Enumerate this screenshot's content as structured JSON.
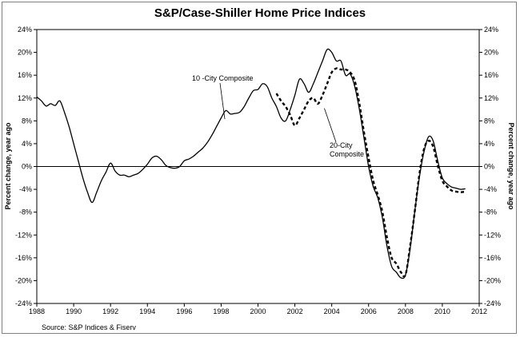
{
  "chart_data": {
    "type": "line",
    "title": "S&P/Case-Shiller Home Price Indices",
    "source": "Source: S&P Indices & Fiserv",
    "ylabel_left": "Percent change, year ago",
    "ylabel_right": "Percent change, year ago",
    "xlabel": "",
    "xlim": [
      1988,
      2012
    ],
    "ylim": [
      -24,
      24
    ],
    "x_ticks": [
      "1988",
      "1990",
      "1992",
      "1994",
      "1996",
      "1998",
      "2000",
      "2002",
      "2004",
      "2006",
      "2008",
      "2010",
      "2012"
    ],
    "y_ticks": [
      "24%",
      "20%",
      "16%",
      "12%",
      "8%",
      "4%",
      "0%",
      "-4%",
      "-8%",
      "-12%",
      "-16%",
      "-20%",
      "-24%"
    ],
    "grid": false,
    "zero_line": true,
    "series": [
      {
        "name": "10 -City Composite",
        "style": "solid",
        "color": "#000000",
        "x": [
          1988.0,
          1988.25,
          1988.5,
          1988.75,
          1989.0,
          1989.25,
          1989.5,
          1989.75,
          1990.0,
          1990.25,
          1990.5,
          1990.75,
          1991.0,
          1991.25,
          1991.5,
          1991.75,
          1992.0,
          1992.25,
          1992.5,
          1992.75,
          1993.0,
          1993.25,
          1993.5,
          1993.75,
          1994.0,
          1994.25,
          1994.5,
          1994.75,
          1995.0,
          1995.25,
          1995.5,
          1995.75,
          1996.0,
          1996.25,
          1996.5,
          1996.75,
          1997.0,
          1997.25,
          1997.5,
          1997.75,
          1998.0,
          1998.25,
          1998.5,
          1998.75,
          1999.0,
          1999.25,
          1999.5,
          1999.75,
          2000.0,
          2000.25,
          2000.5,
          2000.75,
          2001.0,
          2001.25,
          2001.5,
          2001.75,
          2002.0,
          2002.25,
          2002.5,
          2002.75,
          2003.0,
          2003.25,
          2003.5,
          2003.75,
          2004.0,
          2004.25,
          2004.5,
          2004.75,
          2005.0,
          2005.25,
          2005.5,
          2005.75,
          2006.0,
          2006.25,
          2006.5,
          2006.75,
          2007.0,
          2007.25,
          2007.5,
          2007.75,
          2008.0,
          2008.25,
          2008.5,
          2008.75,
          2009.0,
          2009.25,
          2009.5,
          2009.75,
          2010.0,
          2010.25,
          2010.5,
          2010.75,
          2011.0,
          2011.25
        ],
        "values": [
          12.2,
          11.5,
          10.6,
          11.0,
          10.7,
          11.5,
          9.5,
          7.0,
          4.0,
          1.0,
          -2.0,
          -4.5,
          -6.3,
          -4.5,
          -2.5,
          -1.0,
          0.6,
          -0.8,
          -1.5,
          -1.5,
          -1.8,
          -1.5,
          -1.2,
          -0.5,
          0.4,
          1.5,
          1.8,
          1.2,
          0.2,
          -0.2,
          -0.3,
          0.0,
          1.0,
          1.3,
          1.8,
          2.5,
          3.2,
          4.2,
          5.5,
          7.0,
          8.5,
          9.8,
          9.2,
          9.3,
          9.5,
          10.5,
          12.0,
          13.3,
          13.5,
          14.5,
          14.0,
          12.0,
          10.5,
          8.5,
          8.0,
          10.0,
          12.5,
          15.3,
          14.5,
          13.0,
          14.5,
          16.5,
          18.5,
          20.5,
          20.0,
          18.5,
          18.5,
          16.0,
          16.2,
          14.0,
          10.0,
          5.0,
          0.0,
          -3.5,
          -5.5,
          -9.0,
          -14.0,
          -17.5,
          -18.5,
          -19.5,
          -19.0,
          -14.5,
          -8.0,
          -2.0,
          2.5,
          5.2,
          4.5,
          1.0,
          -2.0,
          -3.0,
          -3.6,
          -3.8,
          -4.0,
          -3.9
        ]
      },
      {
        "name": "20-City Composite",
        "label_line1": "20-City",
        "label_line2": "Composite",
        "style": "dashed",
        "color": "#000000",
        "x": [
          2001.0,
          2001.25,
          2001.5,
          2001.75,
          2002.0,
          2002.25,
          2002.5,
          2002.75,
          2003.0,
          2003.25,
          2003.5,
          2003.75,
          2004.0,
          2004.25,
          2004.5,
          2004.75,
          2005.0,
          2005.25,
          2005.5,
          2005.75,
          2006.0,
          2006.25,
          2006.5,
          2006.75,
          2007.0,
          2007.25,
          2007.5,
          2007.75,
          2008.0,
          2008.25,
          2008.5,
          2008.75,
          2009.0,
          2009.25,
          2009.5,
          2009.75,
          2010.0,
          2010.25,
          2010.5,
          2010.75,
          2011.0,
          2011.25
        ],
        "values": [
          12.8,
          11.5,
          10.5,
          9.0,
          7.2,
          8.5,
          10.0,
          11.5,
          12.0,
          11.0,
          12.5,
          14.5,
          16.5,
          17.2,
          17.0,
          17.0,
          16.5,
          15.0,
          11.0,
          6.0,
          1.5,
          -2.5,
          -5.0,
          -8.0,
          -12.5,
          -16.0,
          -17.0,
          -18.5,
          -19.0,
          -14.0,
          -8.0,
          -1.5,
          3.0,
          4.5,
          3.5,
          0.2,
          -2.5,
          -3.5,
          -4.2,
          -4.4,
          -4.5,
          -4.4
        ]
      }
    ],
    "annotations": [
      {
        "text": "10 -City Composite",
        "points_to_series": "10 -City Composite",
        "x": 1997.8,
        "y": 15.3,
        "arrow_to_x": 1998.2,
        "arrow_to_y": 8.3
      },
      {
        "text": "20-City Composite",
        "points_to_series": "20-City Composite",
        "x": 2003.9,
        "y": 4.0,
        "arrow_to_x": 2003.6,
        "arrow_to_y": 10.2
      }
    ]
  }
}
